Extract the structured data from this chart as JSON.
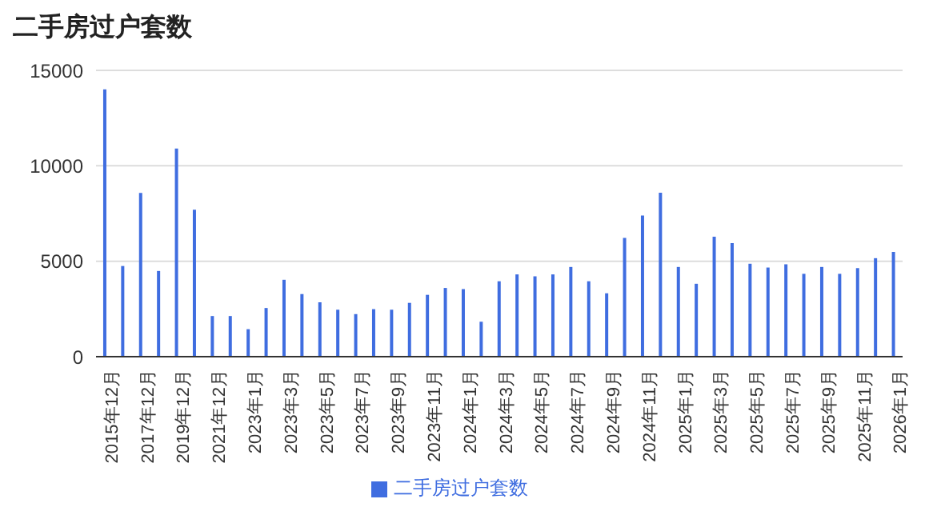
{
  "chart_data": {
    "type": "bar",
    "title": "二手房过户套数",
    "categories": [
      "2015年12月",
      null,
      "2017年12月",
      null,
      "2019年12月",
      null,
      "2021年12月",
      null,
      "2023年1月",
      null,
      "2023年3月",
      null,
      "2023年5月",
      null,
      "2023年7月",
      null,
      "2023年9月",
      null,
      "2023年11月",
      null,
      "2024年1月",
      null,
      "2024年3月",
      null,
      "2024年5月",
      null,
      "2024年7月",
      null,
      "2024年9月",
      null,
      "2024年11月",
      null,
      "2025年1月",
      null,
      "2025年3月",
      null,
      "2025年5月",
      null,
      "2025年7月",
      null,
      "2025年9月",
      null,
      "2025年11月",
      null,
      "2026年1月"
    ],
    "series": [
      {
        "name": "二手房过户套数",
        "color": "#3f6de0",
        "values": [
          14000,
          4750,
          8580,
          4490,
          10900,
          7700,
          2130,
          2130,
          1440,
          2550,
          4030,
          3280,
          2850,
          2460,
          2230,
          2490,
          2460,
          2820,
          3240,
          3600,
          3540,
          1830,
          3950,
          4310,
          4210,
          4310,
          4700,
          3950,
          3320,
          6220,
          7400,
          8590,
          4700,
          3820,
          6280,
          5950,
          4870,
          4670,
          4840,
          4340,
          4700,
          4340,
          4640,
          5160,
          5490
        ]
      }
    ],
    "ylim": [
      0,
      15000
    ],
    "yticks": [
      0,
      5000,
      10000,
      15000
    ],
    "grid": "y",
    "legend": "bottom"
  }
}
